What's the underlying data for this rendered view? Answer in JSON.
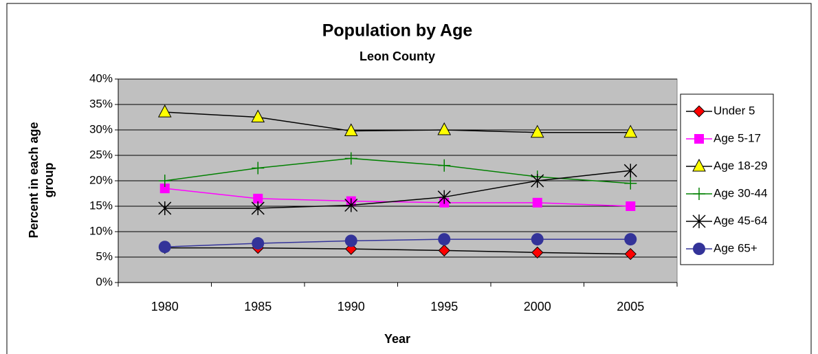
{
  "chart_data": {
    "type": "line",
    "title": "Population by Age",
    "subtitle": "Leon County",
    "x_label": "Year",
    "y_label": "Percent in each age group",
    "categories": [
      "1980",
      "1985",
      "1990",
      "1995",
      "2000",
      "2005"
    ],
    "ylim": [
      0,
      40
    ],
    "yticks": [
      {
        "value": 0,
        "label": "0%"
      },
      {
        "value": 5,
        "label": "5%"
      },
      {
        "value": 10,
        "label": "10%"
      },
      {
        "value": 15,
        "label": "15%"
      },
      {
        "value": 20,
        "label": "20%"
      },
      {
        "value": 25,
        "label": "25%"
      },
      {
        "value": 30,
        "label": "30%"
      },
      {
        "value": 35,
        "label": "35%"
      },
      {
        "value": 40,
        "label": "40%"
      }
    ],
    "grid": true,
    "plot_background": "#c0c0c0",
    "legend": "right",
    "series": [
      {
        "name": "Under 5",
        "color": "#000000",
        "marker": "diamond",
        "marker_color": "#ff0000",
        "values": [
          6.8,
          6.8,
          6.6,
          6.3,
          5.9,
          5.6
        ]
      },
      {
        "name": "Age 5-17",
        "color": "#ff00ff",
        "marker": "square",
        "marker_color": "#ff00ff",
        "values": [
          18.5,
          16.5,
          16.0,
          15.7,
          15.7,
          15.0
        ]
      },
      {
        "name": "Age 18-29",
        "color": "#000000",
        "marker": "triangle",
        "marker_color": "#ffff00",
        "values": [
          33.5,
          32.5,
          29.8,
          30.0,
          29.5,
          29.5
        ]
      },
      {
        "name": "Age 30-44",
        "color": "#008000",
        "marker": "plus",
        "marker_color": "#008000",
        "values": [
          20.0,
          22.5,
          24.4,
          23.0,
          20.8,
          19.5
        ]
      },
      {
        "name": "Age 45-64",
        "color": "#000000",
        "marker": "star",
        "marker_color": "#000000",
        "values": [
          14.6,
          14.6,
          15.2,
          16.8,
          20.0,
          22.0
        ]
      },
      {
        "name": "Age 65+",
        "color": "#333399",
        "marker": "circle",
        "marker_color": "#333399",
        "values": [
          7.0,
          7.7,
          8.2,
          8.5,
          8.5,
          8.5
        ]
      }
    ]
  }
}
